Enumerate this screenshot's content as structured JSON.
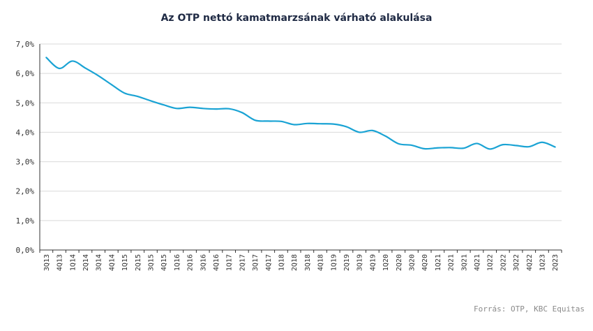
{
  "chart_data": {
    "type": "line",
    "title": "Az OTP nettó kamatmarzsának várható alakulása",
    "xlabel": "",
    "ylabel": "",
    "ylim": [
      0,
      7
    ],
    "yticks": [
      "0,0%",
      "1,0%",
      "2,0%",
      "3,0%",
      "4,0%",
      "5,0%",
      "6,0%",
      "7,0%"
    ],
    "grid": true,
    "categories": [
      "3Q13",
      "4Q13",
      "1Q14",
      "2Q14",
      "3Q14",
      "4Q14",
      "1Q15",
      "2Q15",
      "3Q15",
      "4Q15",
      "1Q16",
      "2Q16",
      "3Q16",
      "4Q16",
      "1Q17",
      "2Q17",
      "3Q17",
      "4Q17",
      "1Q18",
      "2Q18",
      "3Q18",
      "4Q18",
      "1Q19",
      "2Q19",
      "3Q19",
      "4Q19",
      "1Q20",
      "2Q20",
      "3Q20",
      "4Q20",
      "1Q21",
      "2Q21",
      "3Q21",
      "4Q21",
      "1Q22",
      "2Q22",
      "3Q22",
      "4Q22",
      "1Q23",
      "2Q23"
    ],
    "series": [
      {
        "color": "#1aa3d4",
        "values": [
          6.54,
          6.17,
          6.42,
          6.18,
          5.92,
          5.62,
          5.33,
          5.22,
          5.07,
          4.93,
          4.81,
          4.85,
          4.81,
          4.79,
          4.8,
          4.67,
          4.41,
          4.38,
          4.37,
          4.26,
          4.3,
          4.29,
          4.28,
          4.19,
          4.0,
          4.06,
          3.87,
          3.61,
          3.56,
          3.44,
          3.47,
          3.48,
          3.46,
          3.62,
          3.43,
          3.58,
          3.55,
          3.51,
          3.66,
          3.5
        ]
      }
    ]
  },
  "source": "Forrás: OTP, KBC Equitas"
}
